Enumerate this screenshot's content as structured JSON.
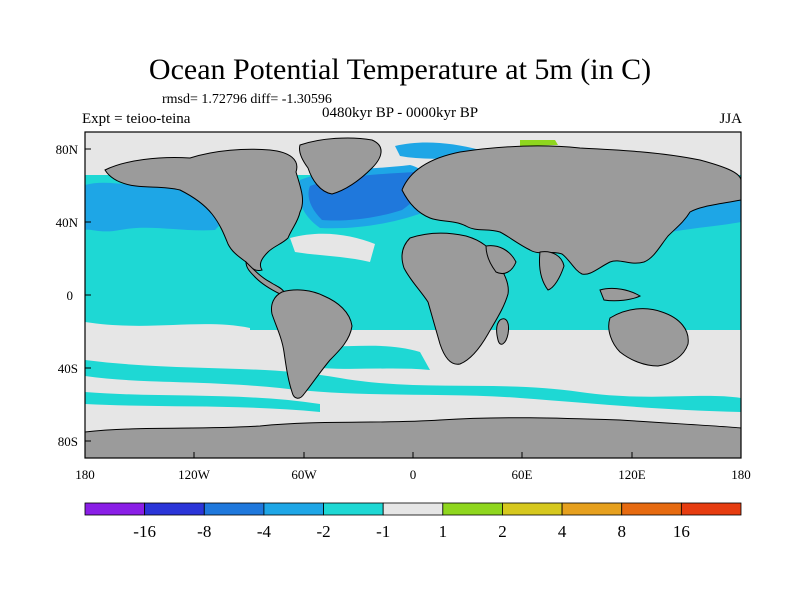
{
  "title": "Ocean Potential Temperature at 5m (in C)",
  "stats": "rmsd= 1.72796 diff= -1.30596",
  "experiment": "Expt = teioo-teina",
  "period": "0480kyr BP - 0000kyr BP",
  "season": "JJA",
  "axes": {
    "y_ticks": [
      "80N",
      "40N",
      "0",
      "40S",
      "80S"
    ],
    "x_ticks": [
      "180",
      "120W",
      "60W",
      "0",
      "60E",
      "120E",
      "180"
    ]
  },
  "colorbar": {
    "colors": [
      "#8a1ee6",
      "#2b35d8",
      "#1f78dc",
      "#1ea6e6",
      "#1ed8d4",
      "#e6e6e6",
      "#8fd61e",
      "#d6c81e",
      "#e6a01e",
      "#e66a10",
      "#e63c10"
    ],
    "labels": [
      "-16",
      "-8",
      "-4",
      "-2",
      "-1",
      "1",
      "2",
      "4",
      "8",
      "16"
    ]
  },
  "map_colors": {
    "land": "#9b9b9b",
    "neutral": "#e6e6e6",
    "cyan": "#1ed8d4",
    "light_blue": "#1ea6e6",
    "blue": "#1f78dc",
    "green": "#8fd61e"
  }
}
